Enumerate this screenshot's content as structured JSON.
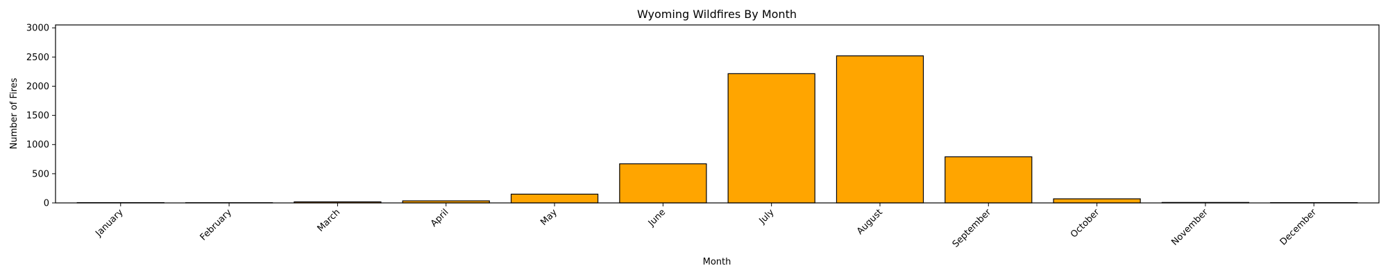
{
  "chart_data": {
    "type": "bar",
    "title": "Wyoming Wildfires By Month",
    "xlabel": "Month",
    "ylabel": "Number of Fires",
    "categories": [
      "January",
      "February",
      "March",
      "April",
      "May",
      "June",
      "July",
      "August",
      "September",
      "October",
      "November",
      "December"
    ],
    "values": [
      5,
      4,
      18,
      35,
      150,
      670,
      2215,
      2520,
      790,
      70,
      8,
      5
    ],
    "ylim": [
      0,
      3050
    ],
    "yticks": [
      0,
      500,
      1000,
      1500,
      2000,
      2500,
      3000
    ],
    "grid": false,
    "legend": "none",
    "bar_color": "#ffa500",
    "bar_edge_color": "#000000"
  }
}
